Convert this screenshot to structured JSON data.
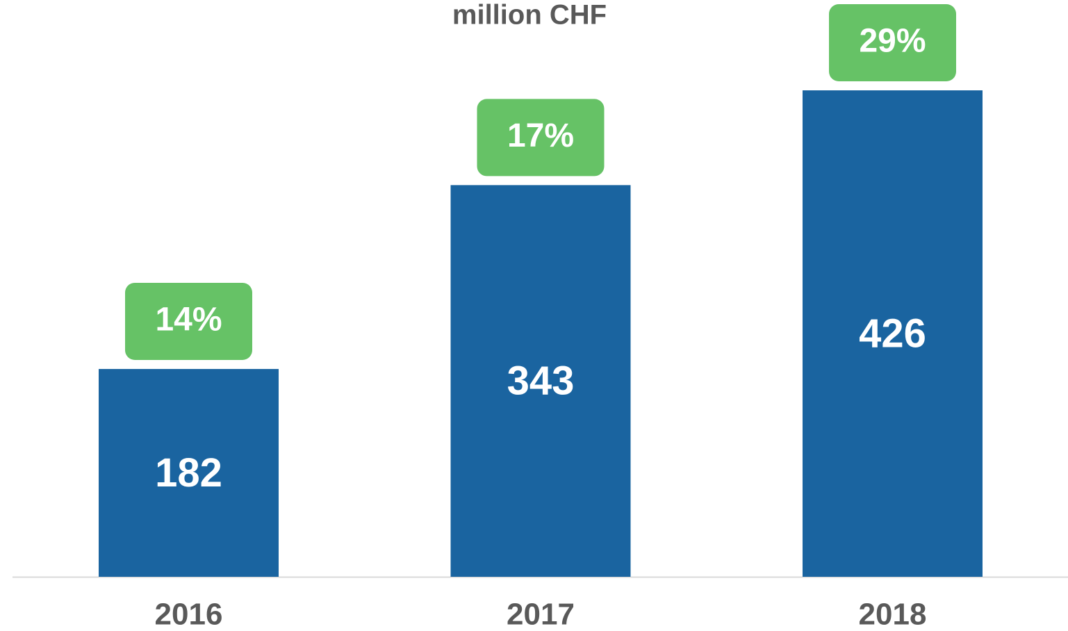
{
  "chart_data": {
    "type": "bar",
    "title": "million CHF",
    "categories": [
      "2016",
      "2017",
      "2018"
    ],
    "values": [
      182,
      343,
      426
    ],
    "color": "#1a64a0",
    "badges": [
      14,
      17,
      29
    ],
    "badge_labels": [
      "14%",
      "17%",
      "29%"
    ],
    "badge_color": "#66c266"
  }
}
